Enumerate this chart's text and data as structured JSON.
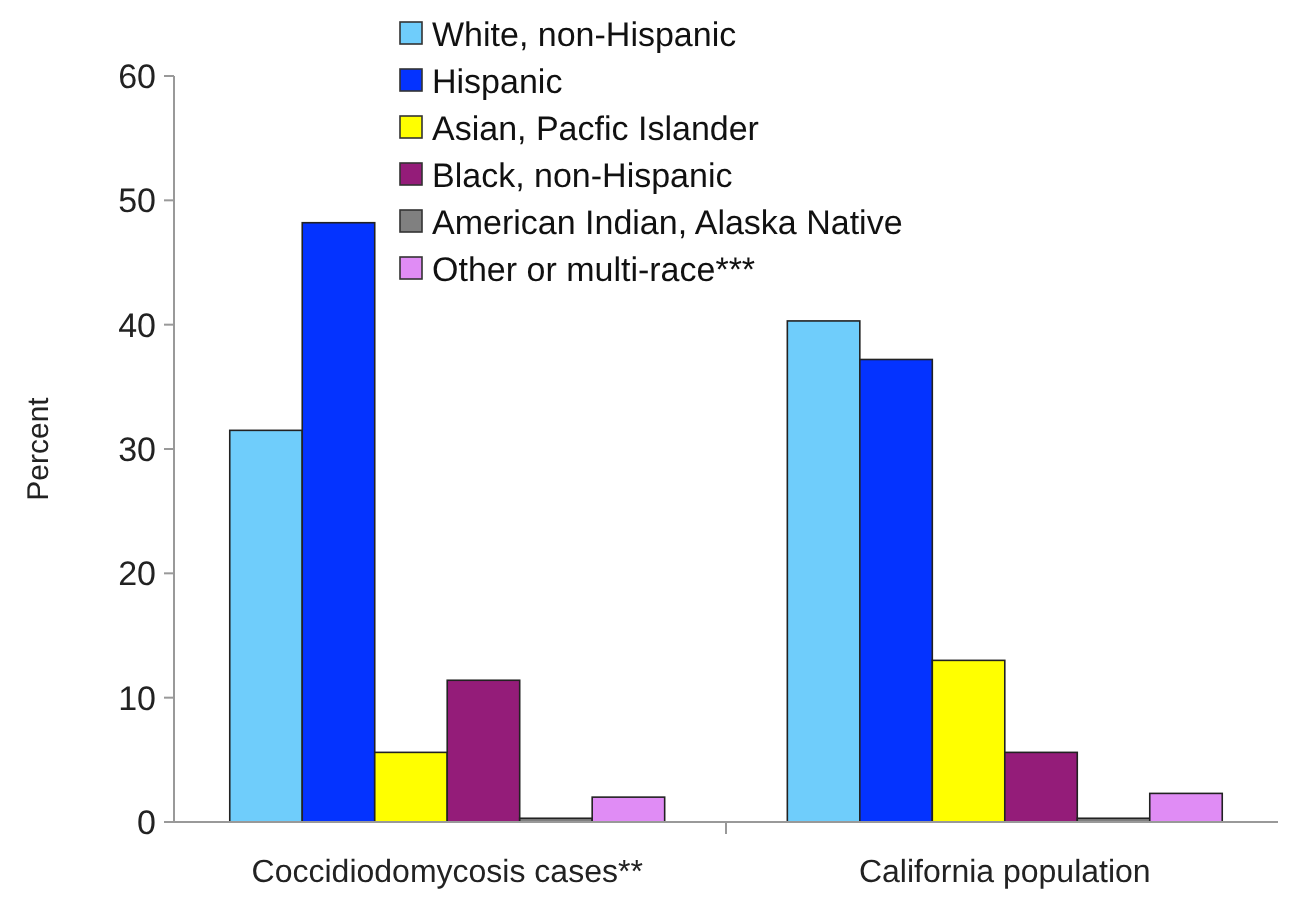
{
  "chart_data": {
    "type": "bar",
    "ylabel": "Percent",
    "categories": [
      "Coccidiodomycosis cases**",
      "California population"
    ],
    "series": [
      {
        "name": "White, non-Hispanic",
        "color": "#6fcdfb",
        "values": [
          31.5,
          40.3
        ]
      },
      {
        "name": "Hispanic",
        "color": "#0433ff",
        "values": [
          48.2,
          37.2
        ]
      },
      {
        "name": "Asian, Pacfic Islander",
        "color": "#ffff00",
        "values": [
          5.6,
          13.0
        ]
      },
      {
        "name": "Black, non-Hispanic",
        "color": "#941c79",
        "values": [
          11.4,
          5.6
        ]
      },
      {
        "name": "American Indian, Alaska Native",
        "color": "#808080",
        "values": [
          0.3,
          0.3
        ]
      },
      {
        "name": "Other or multi-race***",
        "color": "#e08cf5",
        "values": [
          2.0,
          2.3
        ]
      }
    ],
    "ylim": [
      0,
      60
    ],
    "yticks": [
      0,
      10,
      20,
      30,
      40,
      50,
      60
    ],
    "legend": "top"
  }
}
